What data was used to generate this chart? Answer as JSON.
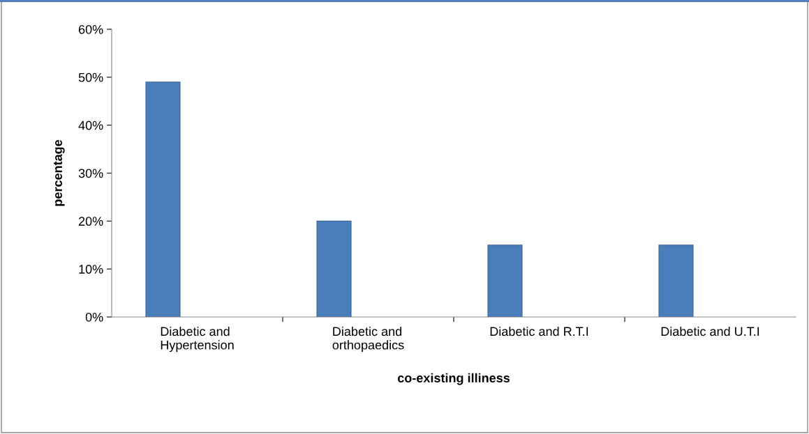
{
  "chart_data": {
    "type": "bar",
    "xlabel": "co-existing illiness",
    "ylabel": "percentage",
    "categories": [
      "Diabetic and\nHypertension",
      "Diabetic and\northopaedics",
      "Diabetic and R.T.I",
      "Diabetic and U.T.I"
    ],
    "values": [
      49,
      20,
      15,
      15
    ],
    "color": "#4a7ebb",
    "ylim": [
      0,
      60
    ],
    "yticks": [
      {
        "value": 0,
        "label": "0%"
      },
      {
        "value": 10,
        "label": "10%"
      },
      {
        "value": 20,
        "label": "20%"
      },
      {
        "value": 30,
        "label": "30%"
      },
      {
        "value": 40,
        "label": "40%"
      },
      {
        "value": 50,
        "label": "50%"
      },
      {
        "value": 60,
        "label": "60%"
      }
    ],
    "grid": false,
    "legend": false
  }
}
